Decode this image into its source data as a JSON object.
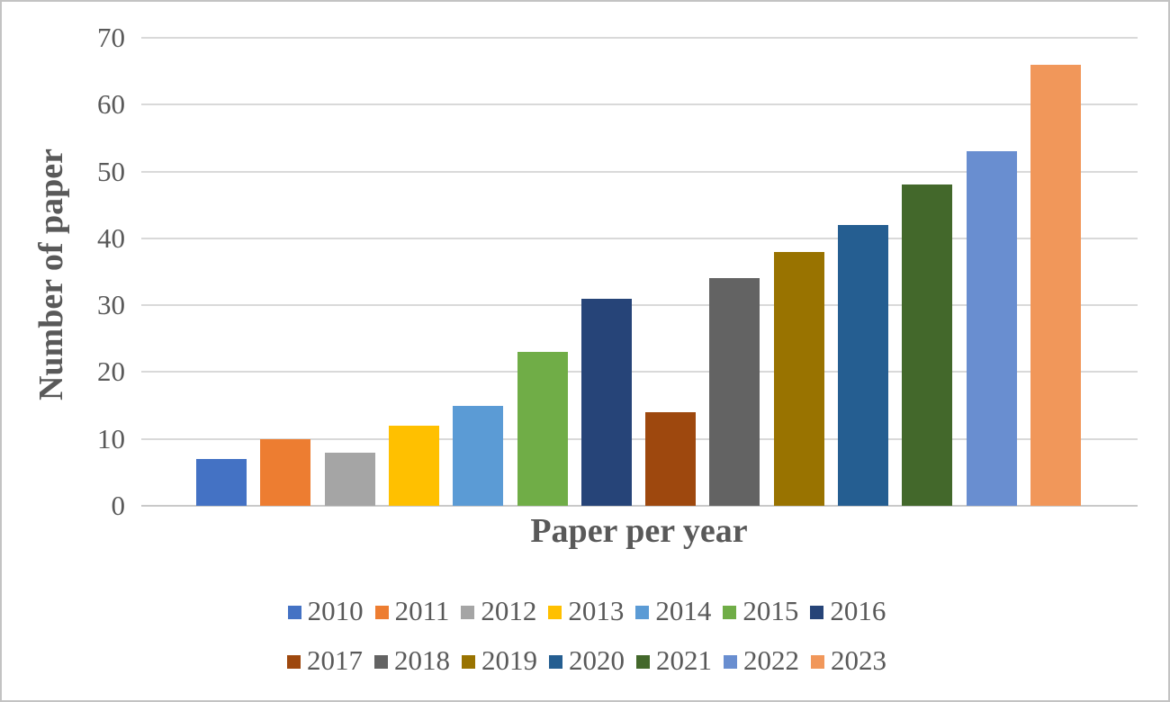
{
  "chart_data": {
    "type": "bar",
    "title": "",
    "xlabel": "Paper per year",
    "ylabel": "Number of paper",
    "categories": [
      "2010",
      "2011",
      "2012",
      "2013",
      "2014",
      "2015",
      "2016",
      "2017",
      "2018",
      "2019",
      "2020",
      "2021",
      "2022",
      "2023"
    ],
    "values": [
      7,
      10,
      8,
      12,
      15,
      23,
      31,
      14,
      34,
      38,
      42,
      48,
      53,
      66
    ],
    "colors": [
      "#4472C4",
      "#ED7D31",
      "#A5A5A5",
      "#FFC000",
      "#5B9BD5",
      "#70AD47",
      "#264478",
      "#9E480E",
      "#636363",
      "#997300",
      "#255E91",
      "#43682B",
      "#698ED0",
      "#F1975A"
    ],
    "ylim": [
      0,
      70
    ],
    "yticks": [
      0,
      10,
      20,
      30,
      40,
      50,
      60,
      70
    ],
    "grid": true,
    "legend_position": "bottom",
    "legend_rows": [
      [
        "2010",
        "2011",
        "2012",
        "2013",
        "2014",
        "2015",
        "2016"
      ],
      [
        "2017",
        "2018",
        "2019",
        "2020",
        "2021",
        "2022",
        "2023"
      ]
    ]
  },
  "styles": {
    "text_color": "#595959",
    "gridline_color": "#D9D9D9",
    "background": "#FFFFFF",
    "border_color": "#C3C3C3"
  }
}
